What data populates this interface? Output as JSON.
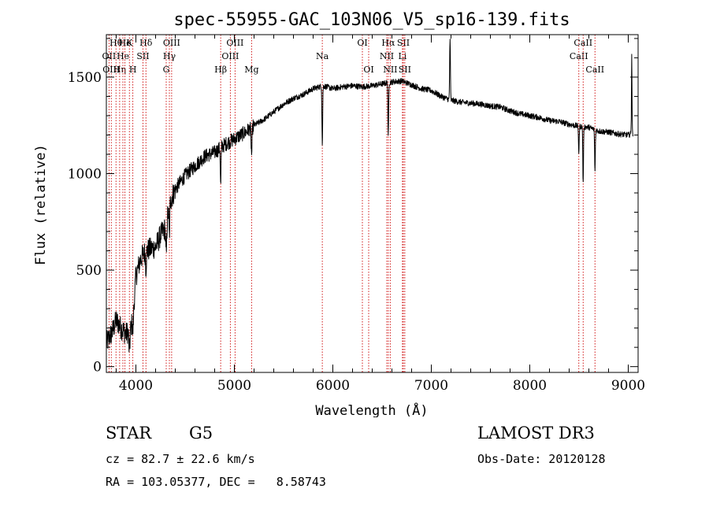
{
  "chart_data": {
    "type": "line",
    "title": "spec-55955-GAC_103N06_V5_sp16-139.fits",
    "xlabel": "Wavelength (Å)",
    "ylabel": "Flux (relative)",
    "xlim": [
      3700,
      9100
    ],
    "ylim": [
      -30,
      1720
    ],
    "x_ticks": [
      4000,
      5000,
      6000,
      7000,
      8000,
      9000
    ],
    "y_ticks": [
      0,
      500,
      1000,
      1500
    ],
    "y_minor_step": 100,
    "x_minor_step": 200,
    "grid": false,
    "series": [
      {
        "name": "flux",
        "continuum": [
          [
            3700,
            120
          ],
          [
            3760,
            180
          ],
          [
            3800,
            240
          ],
          [
            3850,
            200
          ],
          [
            3900,
            170
          ],
          [
            3950,
            200
          ],
          [
            3980,
            320
          ],
          [
            4000,
            470
          ],
          [
            4050,
            560
          ],
          [
            4100,
            600
          ],
          [
            4150,
            610
          ],
          [
            4200,
            620
          ],
          [
            4250,
            680
          ],
          [
            4300,
            720
          ],
          [
            4350,
            860
          ],
          [
            4400,
            920
          ],
          [
            4500,
            990
          ],
          [
            4600,
            1040
          ],
          [
            4700,
            1090
          ],
          [
            4800,
            1110
          ],
          [
            4900,
            1150
          ],
          [
            5000,
            1180
          ],
          [
            5100,
            1210
          ],
          [
            5200,
            1250
          ],
          [
            5300,
            1280
          ],
          [
            5400,
            1320
          ],
          [
            5500,
            1360
          ],
          [
            5600,
            1390
          ],
          [
            5700,
            1410
          ],
          [
            5800,
            1440
          ],
          [
            5900,
            1455
          ],
          [
            6000,
            1440
          ],
          [
            6100,
            1450
          ],
          [
            6200,
            1455
          ],
          [
            6300,
            1450
          ],
          [
            6400,
            1455
          ],
          [
            6500,
            1465
          ],
          [
            6600,
            1475
          ],
          [
            6700,
            1480
          ],
          [
            6800,
            1460
          ],
          [
            6900,
            1440
          ],
          [
            7000,
            1430
          ],
          [
            7100,
            1400
          ],
          [
            7200,
            1380
          ],
          [
            7300,
            1370
          ],
          [
            7400,
            1365
          ],
          [
            7500,
            1360
          ],
          [
            7600,
            1350
          ],
          [
            7700,
            1345
          ],
          [
            7800,
            1325
          ],
          [
            7900,
            1310
          ],
          [
            8000,
            1300
          ],
          [
            8100,
            1290
          ],
          [
            8200,
            1275
          ],
          [
            8300,
            1270
          ],
          [
            8400,
            1255
          ],
          [
            8500,
            1245
          ],
          [
            8600,
            1240
          ],
          [
            8700,
            1220
          ],
          [
            8800,
            1215
          ],
          [
            8900,
            1205
          ],
          [
            9000,
            1200
          ],
          [
            9050,
            1210
          ]
        ],
        "absorption": [
          {
            "center": 3934,
            "depth": 110,
            "width": 8
          },
          {
            "center": 3969,
            "depth": 90,
            "width": 8
          },
          {
            "center": 4102,
            "depth": 90,
            "width": 6
          },
          {
            "center": 4308,
            "depth": 170,
            "width": 7
          },
          {
            "center": 4340,
            "depth": 160,
            "width": 6
          },
          {
            "center": 4861,
            "depth": 200,
            "width": 5
          },
          {
            "center": 5175,
            "depth": 140,
            "width": 7
          },
          {
            "center": 5893,
            "depth": 310,
            "width": 5
          },
          {
            "center": 6563,
            "depth": 290,
            "width": 5
          },
          {
            "center": 8498,
            "depth": 140,
            "width": 5
          },
          {
            "center": 8542,
            "depth": 300,
            "width": 5
          },
          {
            "center": 8662,
            "depth": 220,
            "width": 5
          }
        ],
        "emission": [
          {
            "center": 7190,
            "height": 320,
            "width": 5
          },
          {
            "center": 9035,
            "height": 420,
            "width": 4
          }
        ],
        "noise_amplitude": 25
      }
    ],
    "line_markers": [
      {
        "wavelength": 3727,
        "label": "OII",
        "row": 1
      },
      {
        "wavelength": 3750,
        "label": "OIII",
        "row": 2
      },
      {
        "wavelength": 3798,
        "label": "Hθ",
        "row": 0
      },
      {
        "wavelength": 3835,
        "label": "Hη",
        "row": 2
      },
      {
        "wavelength": 3868,
        "label": "He",
        "row": 1
      },
      {
        "wavelength": 3889,
        "label": "He",
        "row": 0
      },
      {
        "wavelength": 3934,
        "label": "K",
        "row": 0
      },
      {
        "wavelength": 3969,
        "label": "H",
        "row": 2
      },
      {
        "wavelength": 4072,
        "label": "SII",
        "row": 1
      },
      {
        "wavelength": 4102,
        "label": "Hδ",
        "row": 0
      },
      {
        "wavelength": 4308,
        "label": "G",
        "row": 2
      },
      {
        "wavelength": 4340,
        "label": "Hγ",
        "row": 1
      },
      {
        "wavelength": 4363,
        "label": "OIII",
        "row": 0
      },
      {
        "wavelength": 4861,
        "label": "Hβ",
        "row": 2
      },
      {
        "wavelength": 4959,
        "label": "OIII",
        "row": 1
      },
      {
        "wavelength": 5007,
        "label": "OIII",
        "row": 0
      },
      {
        "wavelength": 5175,
        "label": "Mg",
        "row": 2
      },
      {
        "wavelength": 5893,
        "label": "Na",
        "row": 1
      },
      {
        "wavelength": 6300,
        "label": "OI",
        "row": 0
      },
      {
        "wavelength": 6364,
        "label": "OI",
        "row": 2
      },
      {
        "wavelength": 6548,
        "label": "NII",
        "row": 1
      },
      {
        "wavelength": 6563,
        "label": "Hα",
        "row": 0
      },
      {
        "wavelength": 6583,
        "label": "NII",
        "row": 2
      },
      {
        "wavelength": 6707,
        "label": "Li",
        "row": 1
      },
      {
        "wavelength": 6716,
        "label": "SII",
        "row": 0
      },
      {
        "wavelength": 6731,
        "label": "SII",
        "row": 2
      },
      {
        "wavelength": 8498,
        "label": "CaII",
        "row": 1
      },
      {
        "wavelength": 8542,
        "label": "CaII",
        "row": 0
      },
      {
        "wavelength": 8662,
        "label": "CaII",
        "row": 2
      }
    ]
  },
  "info": {
    "object_class": "STAR",
    "subclass": "G5",
    "survey": "LAMOST DR3",
    "cz": "cz = 82.7 ± 22.6 km/s",
    "obs_date": "Obs-Date: 20120128",
    "coords": "RA = 103.05377, DEC =   8.58743"
  },
  "colors": {
    "spectrum": "#000000",
    "marker": "#cc0000",
    "axes": "#000000"
  }
}
